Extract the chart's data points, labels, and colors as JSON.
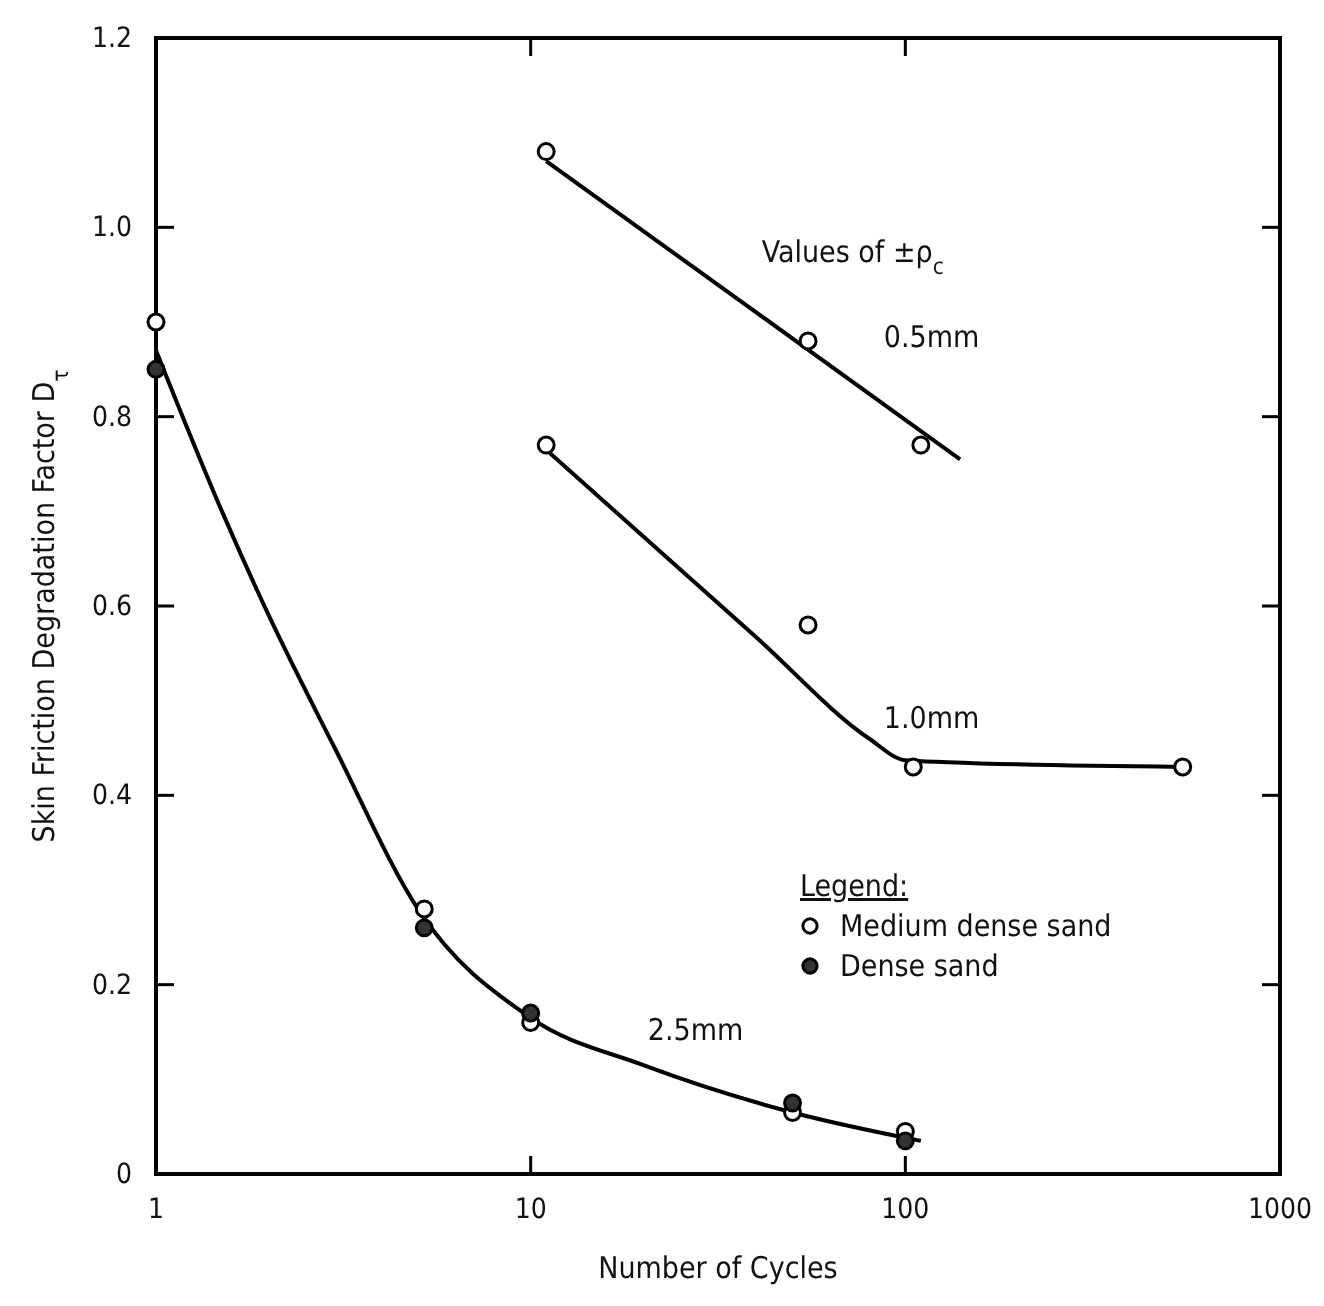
{
  "chart_data": {
    "type": "scatter",
    "xlabel": "Number of Cycles",
    "ylabel": "Skin Friction Degradation Factor D$_{τ}$",
    "log": "x",
    "xlim": [
      1,
      1000
    ],
    "xticks": [
      1,
      10,
      100,
      1000
    ],
    "ylim": [
      0,
      1.2
    ],
    "yticks": [
      0,
      0.2,
      0.4,
      0.6,
      0.8,
      {
        "value": 1,
        "label": "1.0"
      },
      1.2
    ],
    "grid": false,
    "legend": "right",
    "legend_title": "Legend:",
    "series": [
      {
        "name": "Medium dense sand",
        "marker": "circle",
        "color": "#ffffff",
        "x": [
          1,
          5.2,
          10,
          50,
          100,
          11,
          55,
          110,
          11,
          55,
          105,
          550
        ],
        "values": [
          0.9,
          0.28,
          0.16,
          0.065,
          0.045,
          1.08,
          0.88,
          0.77,
          0.77,
          0.58,
          0.43,
          0.43
        ]
      },
      {
        "name": "Dense sand",
        "marker": "circle",
        "color": "#333333",
        "x": [
          1,
          5.2,
          10,
          50,
          100
        ],
        "values": [
          0.85,
          0.26,
          0.17,
          0.075,
          0.035
        ]
      },
      {
        "type": "line",
        "marker": "none",
        "line_style": "solid",
        "color": "#000000",
        "x": [
          11,
          140
        ],
        "values": [
          1.07,
          0.755
        ]
      },
      {
        "type": "line",
        "marker": "none",
        "line_style": "solid",
        "color": "#000000",
        "x": [
          11,
          40,
          80,
          100,
          130,
          550
        ],
        "values": [
          0.765,
          0.567,
          0.46,
          0.437,
          0.435,
          0.43
        ]
      },
      {
        "type": "line",
        "marker": "none",
        "line_style": "solid",
        "color": "#000000",
        "x": [
          1,
          1.5,
          2,
          3,
          5,
          10,
          20,
          50,
          110
        ],
        "values": [
          0.87,
          0.7,
          0.59,
          0.45,
          0.28,
          0.165,
          0.115,
          0.065,
          0.035
        ]
      }
    ],
    "annotations": [
      "Values of ±ρ$_{c}$",
      "0.5mm",
      "1.0mm",
      "2.5mm"
    ]
  }
}
